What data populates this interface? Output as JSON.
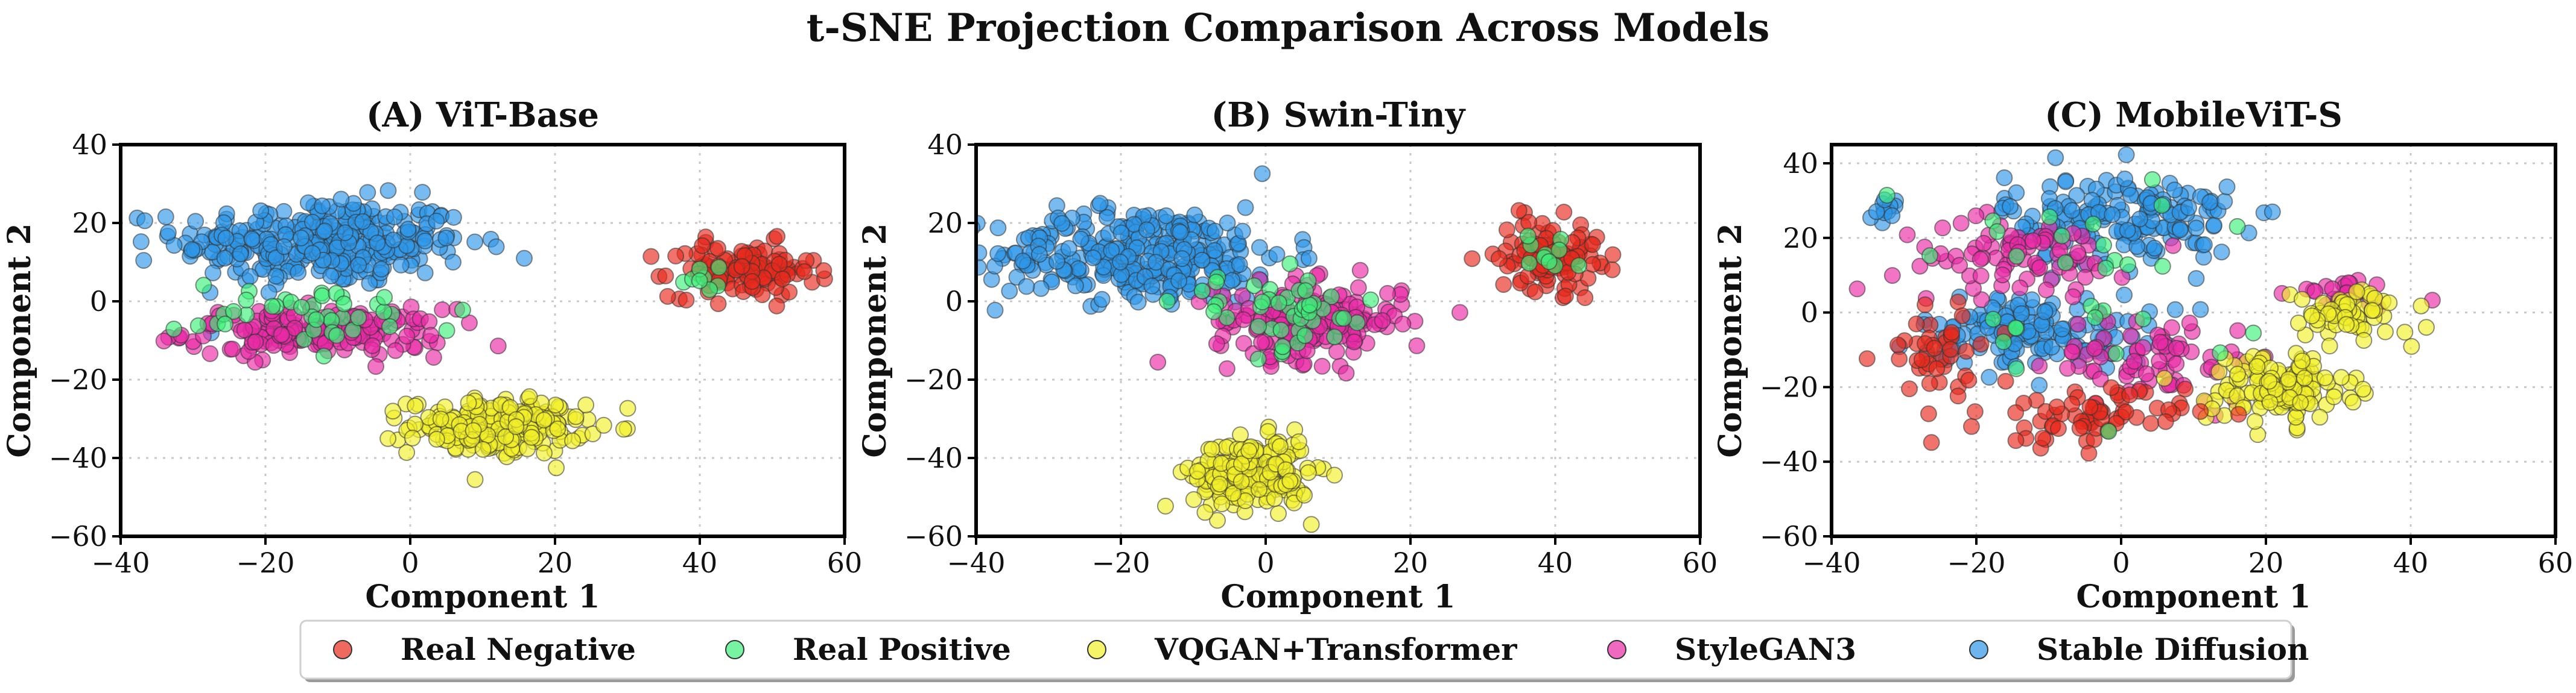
{
  "title": "t-SNE Projection Comparison Across Models",
  "chart_data": [
    {
      "type": "scatter",
      "title": "(A) ViT-Base",
      "xlabel": "Component 1",
      "ylabel": "Component 2",
      "xlim": [
        -40,
        60
      ],
      "ylim": [
        -60,
        40
      ],
      "xticks": [
        -40,
        -20,
        0,
        20,
        40,
        60
      ],
      "yticks": [
        -60,
        -40,
        -20,
        0,
        20,
        40
      ],
      "grid": true,
      "clusters": [
        {
          "series": "Stable Diffusion",
          "cx": -12,
          "cy": 15,
          "sx": 10,
          "sy": 5.5,
          "n": 320
        },
        {
          "series": "StyleGAN3",
          "cx": -13,
          "cy": -8,
          "sx": 9,
          "sy": 3,
          "n": 170
        },
        {
          "series": "Real Positive",
          "cx": -12,
          "cy": -3,
          "sx": 10,
          "sy": 4,
          "n": 40
        },
        {
          "series": "VQGAN+Transformer",
          "cx": 12,
          "cy": -32,
          "sx": 6,
          "sy": 3.5,
          "n": 210
        },
        {
          "series": "Real Negative",
          "cx": 46,
          "cy": 8,
          "sx": 5,
          "sy": 3.5,
          "n": 120
        },
        {
          "series": "Real Positive",
          "cx": 40,
          "cy": 5,
          "sx": 3,
          "sy": 2,
          "n": 8
        }
      ]
    },
    {
      "type": "scatter",
      "title": "(B) Swin-Tiny",
      "xlabel": "Component 1",
      "ylabel": "Component 2",
      "xlim": [
        -40,
        60
      ],
      "ylim": [
        -60,
        40
      ],
      "xticks": [
        -40,
        -20,
        0,
        20,
        40,
        60
      ],
      "yticks": [
        -60,
        -40,
        -20,
        0,
        20,
        40
      ],
      "grid": true,
      "clusters": [
        {
          "series": "Stable Diffusion",
          "cx": -17,
          "cy": 12,
          "sx": 10,
          "sy": 6,
          "n": 320
        },
        {
          "series": "StyleGAN3",
          "cx": 6,
          "cy": -5,
          "sx": 6.5,
          "sy": 5,
          "n": 190
        },
        {
          "series": "Real Positive",
          "cx": 2,
          "cy": -3,
          "sx": 7,
          "sy": 5,
          "n": 45
        },
        {
          "series": "VQGAN+Transformer",
          "cx": -2,
          "cy": -44,
          "sx": 4,
          "sy": 4.5,
          "n": 210
        },
        {
          "series": "Real Negative",
          "cx": 39,
          "cy": 12,
          "sx": 3.5,
          "sy": 4.5,
          "n": 110
        },
        {
          "series": "Real Positive",
          "cx": 40,
          "cy": 12,
          "sx": 2.5,
          "sy": 3,
          "n": 10
        }
      ]
    },
    {
      "type": "scatter",
      "title": "(C) MobileViT-S",
      "xlabel": "Component 1",
      "ylabel": "Component 2",
      "xlim": [
        -40,
        60
      ],
      "ylim": [
        -60,
        45
      ],
      "xticks": [
        -40,
        -20,
        0,
        20,
        40,
        60
      ],
      "yticks": [
        -60,
        -40,
        -20,
        0,
        20,
        40
      ],
      "grid": true,
      "clusters": [
        {
          "series": "Stable Diffusion",
          "cx": 0,
          "cy": 25,
          "sx": 8,
          "sy": 6,
          "n": 180
        },
        {
          "series": "Stable Diffusion",
          "cx": -12,
          "cy": -5,
          "sx": 8,
          "sy": 5,
          "n": 140
        },
        {
          "series": "Stable Diffusion",
          "cx": -32,
          "cy": 28,
          "sx": 1.5,
          "sy": 1.5,
          "n": 12
        },
        {
          "series": "StyleGAN3",
          "cx": -15,
          "cy": 15,
          "sx": 8,
          "sy": 5,
          "n": 80
        },
        {
          "series": "StyleGAN3",
          "cx": 5,
          "cy": -12,
          "sx": 7,
          "sy": 6,
          "n": 70
        },
        {
          "series": "StyleGAN3",
          "cx": 30,
          "cy": 5,
          "sx": 5,
          "sy": 2,
          "n": 25
        },
        {
          "series": "VQGAN+Transformer",
          "cx": 22,
          "cy": -20,
          "sx": 5,
          "sy": 5,
          "n": 130
        },
        {
          "series": "VQGAN+Transformer",
          "cx": 32,
          "cy": 0,
          "sx": 4,
          "sy": 3,
          "n": 60
        },
        {
          "series": "Real Negative",
          "cx": -5,
          "cy": -28,
          "sx": 7,
          "sy": 4,
          "n": 70
        },
        {
          "series": "Real Negative",
          "cx": -25,
          "cy": -10,
          "sx": 4,
          "sy": 6,
          "n": 40
        },
        {
          "series": "Real Positive",
          "cx": -8,
          "cy": 5,
          "sx": 12,
          "sy": 15,
          "n": 30
        }
      ]
    }
  ],
  "legend": {
    "entries": [
      {
        "label": "Real Negative",
        "color": "#e8291b"
      },
      {
        "label": "Real Positive",
        "color": "#3df07a"
      },
      {
        "label": "VQGAN+Transformer",
        "color": "#f2ef2a"
      },
      {
        "label": "StyleGAN3",
        "color": "#ea2aa6"
      },
      {
        "label": "Stable Diffusion",
        "color": "#2e96e8"
      }
    ]
  }
}
